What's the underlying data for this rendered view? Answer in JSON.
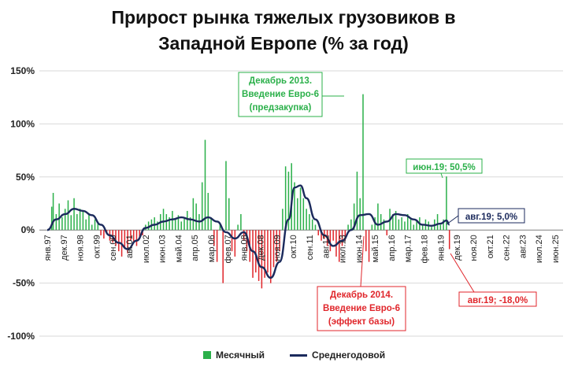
{
  "chart_data": {
    "type": "bar",
    "title_line1": "Прирост рынка тяжелых грузовиков в",
    "title_line2": "Западной Европе (% за год)",
    "y_ticks": [
      "150%",
      "100%",
      "50%",
      "0%",
      "-50%",
      "-100%"
    ],
    "ylim": [
      -100,
      150
    ],
    "x_tick_labels": [
      "янв.97",
      "дек.97",
      "ноя.98",
      "окт.99",
      "сен.00",
      "авг.01",
      "июл.02",
      "июн.03",
      "май.04",
      "апр.05",
      "мар.06",
      "фев.07",
      "янв.08",
      "дек.08",
      "ноя.09",
      "окт.10",
      "сен.11",
      "авг.12",
      "июл.13",
      "июн.14",
      "май.15",
      "апр.16",
      "мар.17",
      "фев.18",
      "янв.19",
      "дек.19",
      "ноя.20",
      "окт.21",
      "сен.22",
      "авг.23",
      "июл.24",
      "июн.25"
    ],
    "legend": {
      "monthly": "Месячный",
      "average": "Среднегодовой"
    },
    "colors": {
      "positive": "#2bb04a",
      "negative": "#e0262b",
      "line": "#1b2a5c",
      "annotation_green": "#2bb04a",
      "annotation_red": "#e0262b",
      "annotation_navy": "#1b2a5c"
    },
    "series": [
      {
        "name": "Месячный",
        "type": "bar",
        "unit": "%",
        "approx_points": [
          [
            0,
            0
          ],
          [
            3,
            22
          ],
          [
            4,
            35
          ],
          [
            6,
            15
          ],
          [
            8,
            25
          ],
          [
            10,
            12
          ],
          [
            12,
            20
          ],
          [
            14,
            28
          ],
          [
            16,
            14
          ],
          [
            18,
            30
          ],
          [
            20,
            15
          ],
          [
            22,
            20
          ],
          [
            24,
            18
          ],
          [
            26,
            10
          ],
          [
            28,
            15
          ],
          [
            30,
            5
          ],
          [
            32,
            10
          ],
          [
            34,
            6
          ],
          [
            36,
            -5
          ],
          [
            38,
            -8
          ],
          [
            40,
            -4
          ],
          [
            42,
            -10
          ],
          [
            44,
            -12
          ],
          [
            46,
            -15
          ],
          [
            48,
            -20
          ],
          [
            50,
            -25
          ],
          [
            52,
            -18
          ],
          [
            54,
            -22
          ],
          [
            56,
            -10
          ],
          [
            58,
            -12
          ],
          [
            60,
            -15
          ],
          [
            62,
            -8
          ],
          [
            64,
            -5
          ],
          [
            66,
            5
          ],
          [
            68,
            8
          ],
          [
            70,
            10
          ],
          [
            72,
            12
          ],
          [
            74,
            8
          ],
          [
            76,
            15
          ],
          [
            78,
            20
          ],
          [
            80,
            15
          ],
          [
            82,
            12
          ],
          [
            84,
            18
          ],
          [
            86,
            10
          ],
          [
            88,
            14
          ],
          [
            90,
            8
          ],
          [
            92,
            12
          ],
          [
            94,
            18
          ],
          [
            96,
            12
          ],
          [
            98,
            30
          ],
          [
            100,
            25
          ],
          [
            102,
            15
          ],
          [
            104,
            45
          ],
          [
            106,
            85
          ],
          [
            108,
            35
          ],
          [
            110,
            12
          ],
          [
            112,
            -15
          ],
          [
            114,
            -30
          ],
          [
            116,
            5
          ],
          [
            118,
            -50
          ],
          [
            120,
            65
          ],
          [
            122,
            30
          ],
          [
            124,
            -20
          ],
          [
            126,
            -25
          ],
          [
            128,
            5
          ],
          [
            130,
            15
          ],
          [
            132,
            -10
          ],
          [
            134,
            -20
          ],
          [
            136,
            -30
          ],
          [
            138,
            -45
          ],
          [
            140,
            -40
          ],
          [
            142,
            -48
          ],
          [
            144,
            -55
          ],
          [
            146,
            -45
          ],
          [
            148,
            -40
          ],
          [
            150,
            -50
          ],
          [
            152,
            -35
          ],
          [
            154,
            -30
          ],
          [
            156,
            -20
          ],
          [
            158,
            20
          ],
          [
            160,
            60
          ],
          [
            162,
            55
          ],
          [
            164,
            63
          ],
          [
            166,
            45
          ],
          [
            168,
            30
          ],
          [
            170,
            40
          ],
          [
            172,
            30
          ],
          [
            174,
            20
          ],
          [
            176,
            15
          ],
          [
            178,
            10
          ],
          [
            180,
            5
          ],
          [
            182,
            -5
          ],
          [
            184,
            -10
          ],
          [
            186,
            -8
          ],
          [
            188,
            -15
          ],
          [
            190,
            -20
          ],
          [
            192,
            -10
          ],
          [
            194,
            -25
          ],
          [
            196,
            -30
          ],
          [
            198,
            -15
          ],
          [
            200,
            -10
          ],
          [
            202,
            5
          ],
          [
            204,
            10
          ],
          [
            206,
            25
          ],
          [
            208,
            55
          ],
          [
            210,
            30
          ],
          [
            212,
            128
          ],
          [
            214,
            -20
          ],
          [
            216,
            -30
          ],
          [
            218,
            5
          ],
          [
            220,
            12
          ],
          [
            222,
            25
          ],
          [
            224,
            15
          ],
          [
            226,
            10
          ],
          [
            228,
            -5
          ],
          [
            230,
            20
          ],
          [
            232,
            15
          ],
          [
            234,
            18
          ],
          [
            236,
            10
          ],
          [
            238,
            12
          ],
          [
            240,
            8
          ],
          [
            242,
            15
          ],
          [
            244,
            10
          ],
          [
            246,
            5
          ],
          [
            248,
            8
          ],
          [
            250,
            12
          ],
          [
            252,
            5
          ],
          [
            254,
            10
          ],
          [
            256,
            8
          ],
          [
            258,
            3
          ],
          [
            260,
            10
          ],
          [
            262,
            15
          ],
          [
            264,
            5
          ],
          [
            266,
            10
          ],
          [
            268,
            50.5
          ],
          [
            270,
            -18
          ]
        ]
      },
      {
        "name": "Среднегодовой",
        "type": "line",
        "unit": "%",
        "approx_points": [
          [
            0,
            0
          ],
          [
            6,
            10
          ],
          [
            12,
            15
          ],
          [
            18,
            20
          ],
          [
            24,
            18
          ],
          [
            30,
            14
          ],
          [
            36,
            5
          ],
          [
            42,
            -5
          ],
          [
            48,
            -12
          ],
          [
            54,
            -18
          ],
          [
            60,
            -10
          ],
          [
            66,
            2
          ],
          [
            72,
            5
          ],
          [
            78,
            8
          ],
          [
            84,
            10
          ],
          [
            90,
            12
          ],
          [
            96,
            10
          ],
          [
            102,
            8
          ],
          [
            108,
            12
          ],
          [
            114,
            8
          ],
          [
            120,
            -2
          ],
          [
            126,
            -8
          ],
          [
            132,
            -2
          ],
          [
            138,
            -20
          ],
          [
            144,
            -35
          ],
          [
            150,
            -45
          ],
          [
            156,
            -30
          ],
          [
            162,
            10
          ],
          [
            166,
            40
          ],
          [
            170,
            42
          ],
          [
            174,
            30
          ],
          [
            180,
            10
          ],
          [
            186,
            -5
          ],
          [
            192,
            -15
          ],
          [
            198,
            -10
          ],
          [
            204,
            0
          ],
          [
            210,
            14
          ],
          [
            216,
            15
          ],
          [
            222,
            5
          ],
          [
            228,
            8
          ],
          [
            234,
            15
          ],
          [
            240,
            14
          ],
          [
            246,
            10
          ],
          [
            252,
            5
          ],
          [
            258,
            4
          ],
          [
            264,
            6
          ],
          [
            268,
            9
          ],
          [
            270,
            5
          ]
        ]
      }
    ],
    "annotations": [
      {
        "lines": [
          "Декабрь 2013.",
          "Введение Евро-6",
          "(предзакупка)"
        ],
        "color_key": "annotation_green",
        "target_month": 212
      },
      {
        "lines": [
          "июн.19; 50,5%"
        ],
        "color_key": "annotation_green",
        "target_month": 268
      },
      {
        "lines": [
          "авг.19; 5,0%"
        ],
        "color_key": "annotation_navy",
        "target_month": 270
      },
      {
        "lines": [
          "Декабрь 2014.",
          "Введение Евро-6",
          "(эффект базы)"
        ],
        "color_key": "annotation_red",
        "target_month": 214
      },
      {
        "lines": [
          "авг.19; -18,0%"
        ],
        "color_key": "annotation_red",
        "target_month": 270
      }
    ]
  }
}
